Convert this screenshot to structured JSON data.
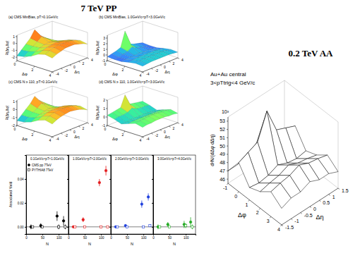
{
  "headings": [
    "7 TeV PP",
    "0.2 TeV AA"
  ],
  "chart_data": [
    {
      "type": "surface",
      "title": "(a) CMS MinBias, pT>0.1GeV/c",
      "xlabel": "Δφ",
      "ylabel": "Δη",
      "zlabel": "R(Δη,Δφ)",
      "x": [
        0,
        0.8,
        1.6,
        2.4,
        3.2,
        4.0
      ],
      "y": [
        -4,
        -3,
        -2,
        -1,
        0,
        1,
        2,
        3,
        4
      ],
      "cells": [
        [
          -1.8,
          -1.2,
          -0.6,
          0.0,
          1.0,
          0.0,
          -0.6,
          -1.2,
          -1.8
        ],
        [
          -1.6,
          -1.1,
          -0.6,
          -0.2,
          0.3,
          -0.2,
          -0.6,
          -1.1,
          -1.6
        ],
        [
          -1.2,
          -0.8,
          -0.5,
          -0.3,
          -0.2,
          -0.3,
          -0.5,
          -0.8,
          -1.2
        ],
        [
          -0.6,
          -0.3,
          -0.1,
          0.0,
          0.1,
          0.0,
          -0.1,
          -0.3,
          -0.6
        ],
        [
          -0.3,
          0.0,
          0.2,
          0.3,
          0.3,
          0.3,
          0.2,
          0.0,
          -0.3
        ],
        [
          -0.5,
          -0.2,
          0.0,
          0.2,
          0.2,
          0.2,
          0.0,
          -0.2,
          -0.5
        ]
      ],
      "xlim": [
        0,
        4
      ],
      "xticks": [
        0,
        2,
        4
      ],
      "ylim": [
        -4,
        4
      ],
      "yticks": [
        -4,
        -2,
        0,
        2,
        4
      ],
      "zlim": [
        -2.5,
        1.2
      ],
      "zticks": [
        -2,
        -1,
        0,
        1
      ]
    },
    {
      "type": "surface",
      "title": "(b) CMS MinBias, 1.0GeV/c<pT<3.0GeV/c",
      "xlabel": "Δφ",
      "ylabel": "Δη",
      "zlabel": "R(Δη,Δφ)",
      "x": [
        0,
        0.8,
        1.6,
        2.4,
        3.2,
        4.0
      ],
      "y": [
        -4,
        -3,
        -2,
        -1,
        0,
        1,
        2,
        3,
        4
      ],
      "cells": [
        [
          -0.3,
          -0.1,
          0.1,
          0.4,
          3.0,
          0.4,
          0.1,
          -0.1,
          -0.3
        ],
        [
          -0.4,
          -0.3,
          -0.1,
          0.1,
          0.6,
          0.1,
          -0.1,
          -0.3,
          -0.4
        ],
        [
          -0.4,
          -0.3,
          -0.2,
          -0.2,
          -0.1,
          -0.2,
          -0.2,
          -0.3,
          -0.4
        ],
        [
          -0.1,
          0.0,
          0.1,
          0.1,
          0.1,
          0.1,
          0.1,
          0.0,
          -0.1
        ],
        [
          0.1,
          0.2,
          0.3,
          0.3,
          0.3,
          0.3,
          0.3,
          0.2,
          0.1
        ],
        [
          0.0,
          0.1,
          0.2,
          0.2,
          0.2,
          0.2,
          0.2,
          0.1,
          0.0
        ]
      ],
      "xlim": [
        0,
        4
      ],
      "xticks": [
        0,
        2,
        4
      ],
      "ylim": [
        -4,
        4
      ],
      "yticks": [
        -4,
        -2,
        0,
        2,
        4
      ],
      "zlim": [
        -1,
        3.5
      ],
      "zticks": [
        -1,
        0,
        1,
        2,
        3
      ]
    },
    {
      "type": "surface",
      "title": "(c) CMS N ≥ 110, pT>0.1GeV/c",
      "xlabel": "Δφ",
      "ylabel": "Δη",
      "zlabel": "R(Δη,Δφ)",
      "x": [
        0,
        0.8,
        1.6,
        2.4,
        3.2,
        4.0
      ],
      "y": [
        -4,
        -3,
        -2,
        -1,
        0,
        1,
        2,
        3,
        4
      ],
      "cells": [
        [
          -1.4,
          -0.9,
          -0.4,
          0.1,
          0.8,
          0.1,
          -0.4,
          -0.9,
          -1.4
        ],
        [
          -1.3,
          -0.9,
          -0.5,
          -0.2,
          0.2,
          -0.2,
          -0.5,
          -0.9,
          -1.3
        ],
        [
          -1.0,
          -0.7,
          -0.5,
          -0.3,
          -0.2,
          -0.3,
          -0.5,
          -0.7,
          -1.0
        ],
        [
          -0.5,
          -0.2,
          0.0,
          0.1,
          0.1,
          0.1,
          0.0,
          -0.2,
          -0.5
        ],
        [
          -0.2,
          0.1,
          0.3,
          0.4,
          0.4,
          0.4,
          0.3,
          0.1,
          -0.2
        ],
        [
          -0.4,
          -0.1,
          0.1,
          0.2,
          0.3,
          0.2,
          0.1,
          -0.1,
          -0.4
        ]
      ],
      "xlim": [
        0,
        4
      ],
      "xticks": [
        0,
        2,
        4
      ],
      "ylim": [
        -4,
        4
      ],
      "yticks": [
        -4,
        -2,
        0,
        2,
        4
      ],
      "zlim": [
        -2,
        1.2
      ],
      "zticks": [
        -2,
        -1,
        0,
        1
      ]
    },
    {
      "type": "surface",
      "title": "(d) CMS N ≥ 110, 1.0GeV/c<pT<3.0GeV/c",
      "xlabel": "Δφ",
      "ylabel": "Δη",
      "zlabel": "R(Δη,Δφ)",
      "x": [
        0,
        0.8,
        1.6,
        2.4,
        3.2,
        4.0
      ],
      "y": [
        -4,
        -3,
        -2,
        -1,
        0,
        1,
        2,
        3,
        4
      ],
      "cells": [
        [
          0.2,
          0.3,
          0.4,
          0.5,
          1.8,
          0.5,
          0.4,
          0.3,
          0.2
        ],
        [
          0.0,
          0.1,
          0.1,
          0.2,
          0.5,
          0.2,
          0.1,
          0.1,
          0.0
        ],
        [
          -0.3,
          -0.3,
          -0.2,
          -0.2,
          -0.2,
          -0.2,
          -0.2,
          -0.3,
          -0.3
        ],
        [
          0.0,
          0.1,
          0.1,
          0.1,
          0.1,
          0.1,
          0.1,
          0.1,
          0.0
        ],
        [
          0.3,
          0.4,
          0.4,
          0.5,
          0.5,
          0.5,
          0.4,
          0.4,
          0.3
        ],
        [
          0.1,
          0.2,
          0.2,
          0.3,
          0.3,
          0.3,
          0.2,
          0.2,
          0.1
        ]
      ],
      "xlim": [
        0,
        4
      ],
      "xticks": [
        0,
        2,
        4
      ],
      "ylim": [
        -4,
        4
      ],
      "yticks": [
        -4,
        -2,
        0,
        2,
        4
      ],
      "zlim": [
        -1,
        2
      ],
      "zticks": [
        -1,
        0,
        1,
        2
      ]
    },
    {
      "type": "scatter",
      "title": "0.1GeV/c<pT<1.0GeV/c",
      "xlabel": "N",
      "ylabel": "Associated Yield",
      "legend": "upper left",
      "xlim": [
        0,
        130
      ],
      "xticks": [
        0,
        50,
        100
      ],
      "ylim": [
        -0.006,
        0.06
      ],
      "yticks": [
        {
          "value": 0,
          "label": "0.00"
        },
        {
          "value": 0.02,
          "label": "0.02"
        },
        {
          "value": 0.04,
          "label": "0.04"
        }
      ],
      "series": [
        {
          "name": "CMS pp 7TeV",
          "color": "#000000",
          "marker": "circle",
          "x": [
            15,
            45,
            95,
            115
          ],
          "values": [
            0.0,
            0.001,
            0.009,
            0.005
          ],
          "errors": [
            0.002,
            0.002,
            0.004,
            0.004
          ]
        },
        {
          "name": "PYTHIA8 7TeV",
          "color": "#000000",
          "marker": "open-square",
          "x": [
            20,
            50,
            100,
            120
          ],
          "values": [
            0.0,
            0.0,
            0.0,
            0.0
          ],
          "errors": [
            0.001,
            0.001,
            0.002,
            0.002
          ]
        }
      ]
    },
    {
      "type": "scatter",
      "title": "1.0GeV/c<pT<2.0GeV/c",
      "xlabel": "N",
      "tick_labels": "x",
      "xlim": [
        0,
        130
      ],
      "xticks": [
        0,
        50,
        100
      ],
      "ylim": [
        -0.006,
        0.06
      ],
      "yticks": [
        0,
        0.02,
        0.04
      ],
      "series": [
        {
          "color": "#e31a1c",
          "marker": "circle",
          "x": [
            15,
            45,
            95,
            115
          ],
          "values": [
            0.0,
            0.006,
            0.037,
            0.047
          ],
          "errors": [
            0.001,
            0.002,
            0.003,
            0.004
          ]
        },
        {
          "color": "#e31a1c",
          "marker": "open-square",
          "x": [
            20,
            50,
            100,
            120
          ],
          "values": [
            0.0,
            0.0,
            0.0,
            0.0
          ],
          "errors": [
            0.001,
            0.001,
            0.001,
            0.001
          ]
        }
      ]
    },
    {
      "type": "scatter",
      "title": "2.0GeV/c<pT<3.0GeV/c",
      "xlabel": "N",
      "tick_labels": "x",
      "xlim": [
        0,
        130
      ],
      "xticks": [
        0,
        50,
        100
      ],
      "ylim": [
        -0.006,
        0.06
      ],
      "yticks": [
        0,
        0.02,
        0.04
      ],
      "series": [
        {
          "color": "#1f3fdd",
          "marker": "circle",
          "x": [
            15,
            45,
            95,
            115
          ],
          "values": [
            0.0,
            0.001,
            0.019,
            0.025
          ],
          "errors": [
            0.001,
            0.001,
            0.003,
            0.003
          ]
        },
        {
          "color": "#1f3fdd",
          "marker": "open-square",
          "x": [
            20,
            50,
            100,
            120
          ],
          "values": [
            0.0,
            0.0,
            0.0,
            0.001
          ],
          "errors": [
            0.001,
            0.001,
            0.001,
            0.001
          ]
        }
      ]
    },
    {
      "type": "scatter",
      "title": "3.0GeV/c<pT<4.0GeV/c",
      "xlabel": "N",
      "tick_labels": "x",
      "xlim": [
        0,
        130
      ],
      "xticks": [
        0,
        50,
        100
      ],
      "ylim": [
        -0.006,
        0.06
      ],
      "yticks": [
        0,
        0.02,
        0.04
      ],
      "series": [
        {
          "color": "#22aa22",
          "marker": "circle",
          "x": [
            15,
            45,
            95,
            115
          ],
          "values": [
            0.0,
            0.002,
            0.002,
            0.004
          ],
          "errors": [
            0.002,
            0.002,
            0.003,
            0.004
          ]
        },
        {
          "color": "#22aa22",
          "marker": "open-square",
          "x": [
            20,
            50,
            100,
            120
          ],
          "values": [
            0.0,
            0.0,
            0.001,
            0.0
          ],
          "errors": [
            0.001,
            0.001,
            0.002,
            0.002
          ]
        }
      ]
    },
    {
      "type": "surface",
      "title": "Au+Au central",
      "subtitle": "3<pTtrig<4 GeV/c",
      "annotation": "10³",
      "xlabel": "Δφ",
      "ylabel": "Δη",
      "zlabel": "d²N/(dΔφ dΔη)",
      "color": "#ffffff",
      "x": [
        -1,
        0,
        1,
        2,
        3,
        4
      ],
      "y": [
        -1.5,
        -1,
        -0.5,
        0,
        0.5,
        1,
        1.5
      ],
      "cells": [
        [
          47,
          47,
          47.5,
          48,
          47.5,
          47,
          47
        ],
        [
          49,
          49.5,
          50,
          53,
          50,
          49.5,
          49
        ],
        [
          47,
          46.8,
          47,
          47.5,
          47,
          46.8,
          47
        ],
        [
          47.5,
          47.8,
          48,
          48.5,
          48,
          47.8,
          47.5
        ],
        [
          48.5,
          48.8,
          49,
          49.5,
          49,
          48.8,
          48.5
        ],
        [
          47.5,
          48,
          48,
          48.5,
          48,
          48,
          47.5
        ]
      ],
      "xlim": [
        -1,
        4
      ],
      "xticks": [
        -1,
        0,
        1,
        2,
        3,
        4
      ],
      "ylim": [
        -1.5,
        1.5
      ],
      "yticks": [
        -1.5,
        -1,
        -0.5,
        0,
        0.5,
        1,
        1.5
      ],
      "zlim": [
        45.5,
        53.5
      ],
      "zticks": [
        46,
        47,
        48,
        49,
        50,
        51,
        52,
        53
      ]
    }
  ]
}
